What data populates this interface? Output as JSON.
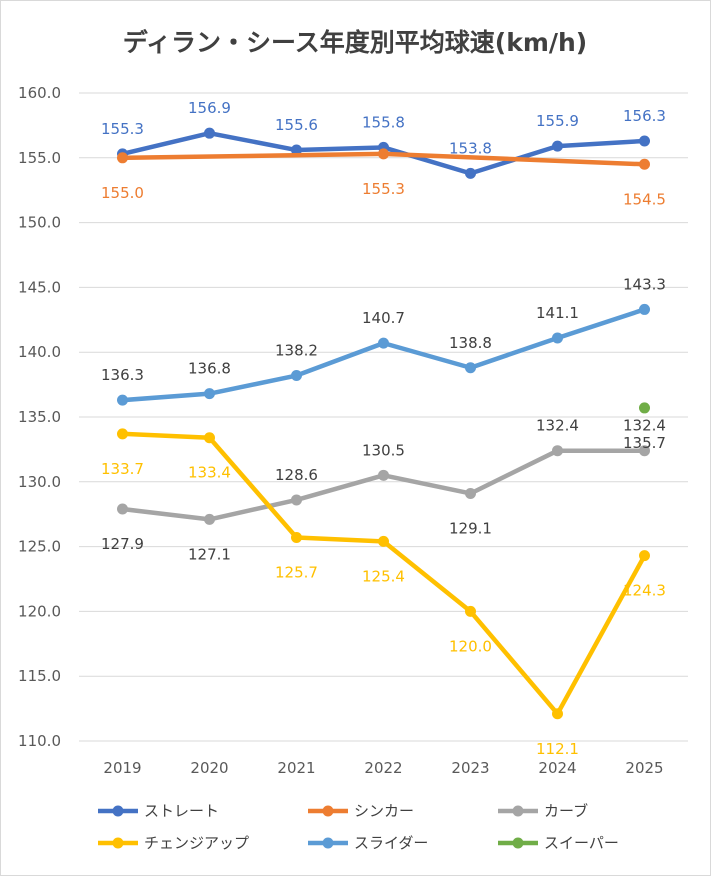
{
  "chart_data": {
    "type": "line",
    "title": "ディラン・シース年度別平均球速(km/h)",
    "xlabel": "",
    "ylabel": "",
    "categories": [
      "2019",
      "2020",
      "2021",
      "2022",
      "2023",
      "2024",
      "2025"
    ],
    "ylim": [
      110.0,
      160.0
    ],
    "yticks": [
      "110.0",
      "115.0",
      "120.0",
      "125.0",
      "130.0",
      "135.0",
      "140.0",
      "145.0",
      "150.0",
      "155.0",
      "160.0"
    ],
    "grid": true,
    "legend_position": "bottom",
    "series": [
      {
        "name": "ストレート",
        "color": "#4472C4",
        "values": [
          155.3,
          156.9,
          155.6,
          155.8,
          153.8,
          155.9,
          156.3
        ],
        "labels": [
          "155.3",
          "156.9",
          "155.6",
          "155.8",
          "153.8",
          "155.9",
          "156.3"
        ]
      },
      {
        "name": "シンカー",
        "color": "#ED7D31",
        "values": [
          155.0,
          null,
          null,
          155.3,
          null,
          null,
          154.5
        ],
        "labels": [
          "155.0",
          null,
          null,
          "155.3",
          null,
          null,
          "154.5"
        ]
      },
      {
        "name": "カーブ",
        "color": "#A5A5A5",
        "values": [
          127.9,
          127.1,
          128.6,
          130.5,
          129.1,
          132.4,
          132.4
        ],
        "labels": [
          "127.9",
          "127.1",
          "128.6",
          "130.5",
          "129.1",
          "132.4",
          "132.4"
        ]
      },
      {
        "name": "チェンジアップ",
        "color": "#FFC000",
        "values": [
          133.7,
          133.4,
          125.7,
          125.4,
          120.0,
          112.1,
          124.3
        ],
        "labels": [
          "133.7",
          "133.4",
          "125.7",
          "125.4",
          "120.0",
          "112.1",
          "124.3"
        ]
      },
      {
        "name": "スライダー",
        "color": "#5B9BD5",
        "values": [
          136.3,
          136.8,
          138.2,
          140.7,
          138.8,
          141.1,
          143.3
        ],
        "labels": [
          "136.3",
          "136.8",
          "138.2",
          "140.7",
          "138.8",
          "141.1",
          "143.3"
        ]
      },
      {
        "name": "スイーパー",
        "color": "#70AD47",
        "values": [
          null,
          null,
          null,
          null,
          null,
          null,
          135.7
        ],
        "labels": [
          null,
          null,
          null,
          null,
          null,
          null,
          "135.7"
        ]
      }
    ]
  }
}
